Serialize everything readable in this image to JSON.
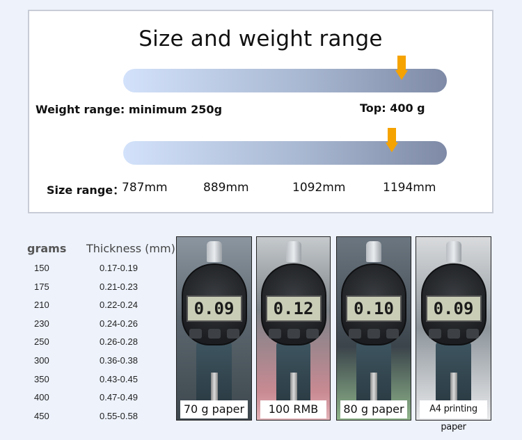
{
  "title": "Size and weight range",
  "weight": {
    "minimum_label": "Weight range: minimum 250g",
    "top_label": "Top: 400 g",
    "marker_position": 0.86
  },
  "size": {
    "label": "Size range：",
    "values": [
      "787mm",
      "889mm",
      "1092mm",
      "1194mm"
    ],
    "marker_position": 0.83
  },
  "table": {
    "headers": {
      "grams": "grams",
      "thickness": "Thickness (mm)"
    },
    "rows": [
      {
        "grams": "150",
        "thickness": "0.17-0.19"
      },
      {
        "grams": "175",
        "thickness": "0.21-0.23"
      },
      {
        "grams": "210",
        "thickness": "0.22-0.24"
      },
      {
        "grams": "230",
        "thickness": "0.24-0.26"
      },
      {
        "grams": "250",
        "thickness": "0.26-0.28"
      },
      {
        "grams": "300",
        "thickness": "0.36-0.38"
      },
      {
        "grams": "350",
        "thickness": "0.43-0.45"
      },
      {
        "grams": "400",
        "thickness": "0.47-0.49"
      },
      {
        "grams": "450",
        "thickness": "0.55-0.58"
      }
    ]
  },
  "photos": [
    {
      "reading": "0.09",
      "caption": "70 g paper"
    },
    {
      "reading": "0.12",
      "caption": "100 RMB"
    },
    {
      "reading": "0.10",
      "caption": "80 g paper"
    },
    {
      "reading": "0.09",
      "caption": "A4 printing paper"
    }
  ],
  "colors": {
    "marker": "#f5a300",
    "bar_start": "#d3e2fa",
    "bar_end": "#7e8aa6",
    "background": "#edf2fb"
  }
}
